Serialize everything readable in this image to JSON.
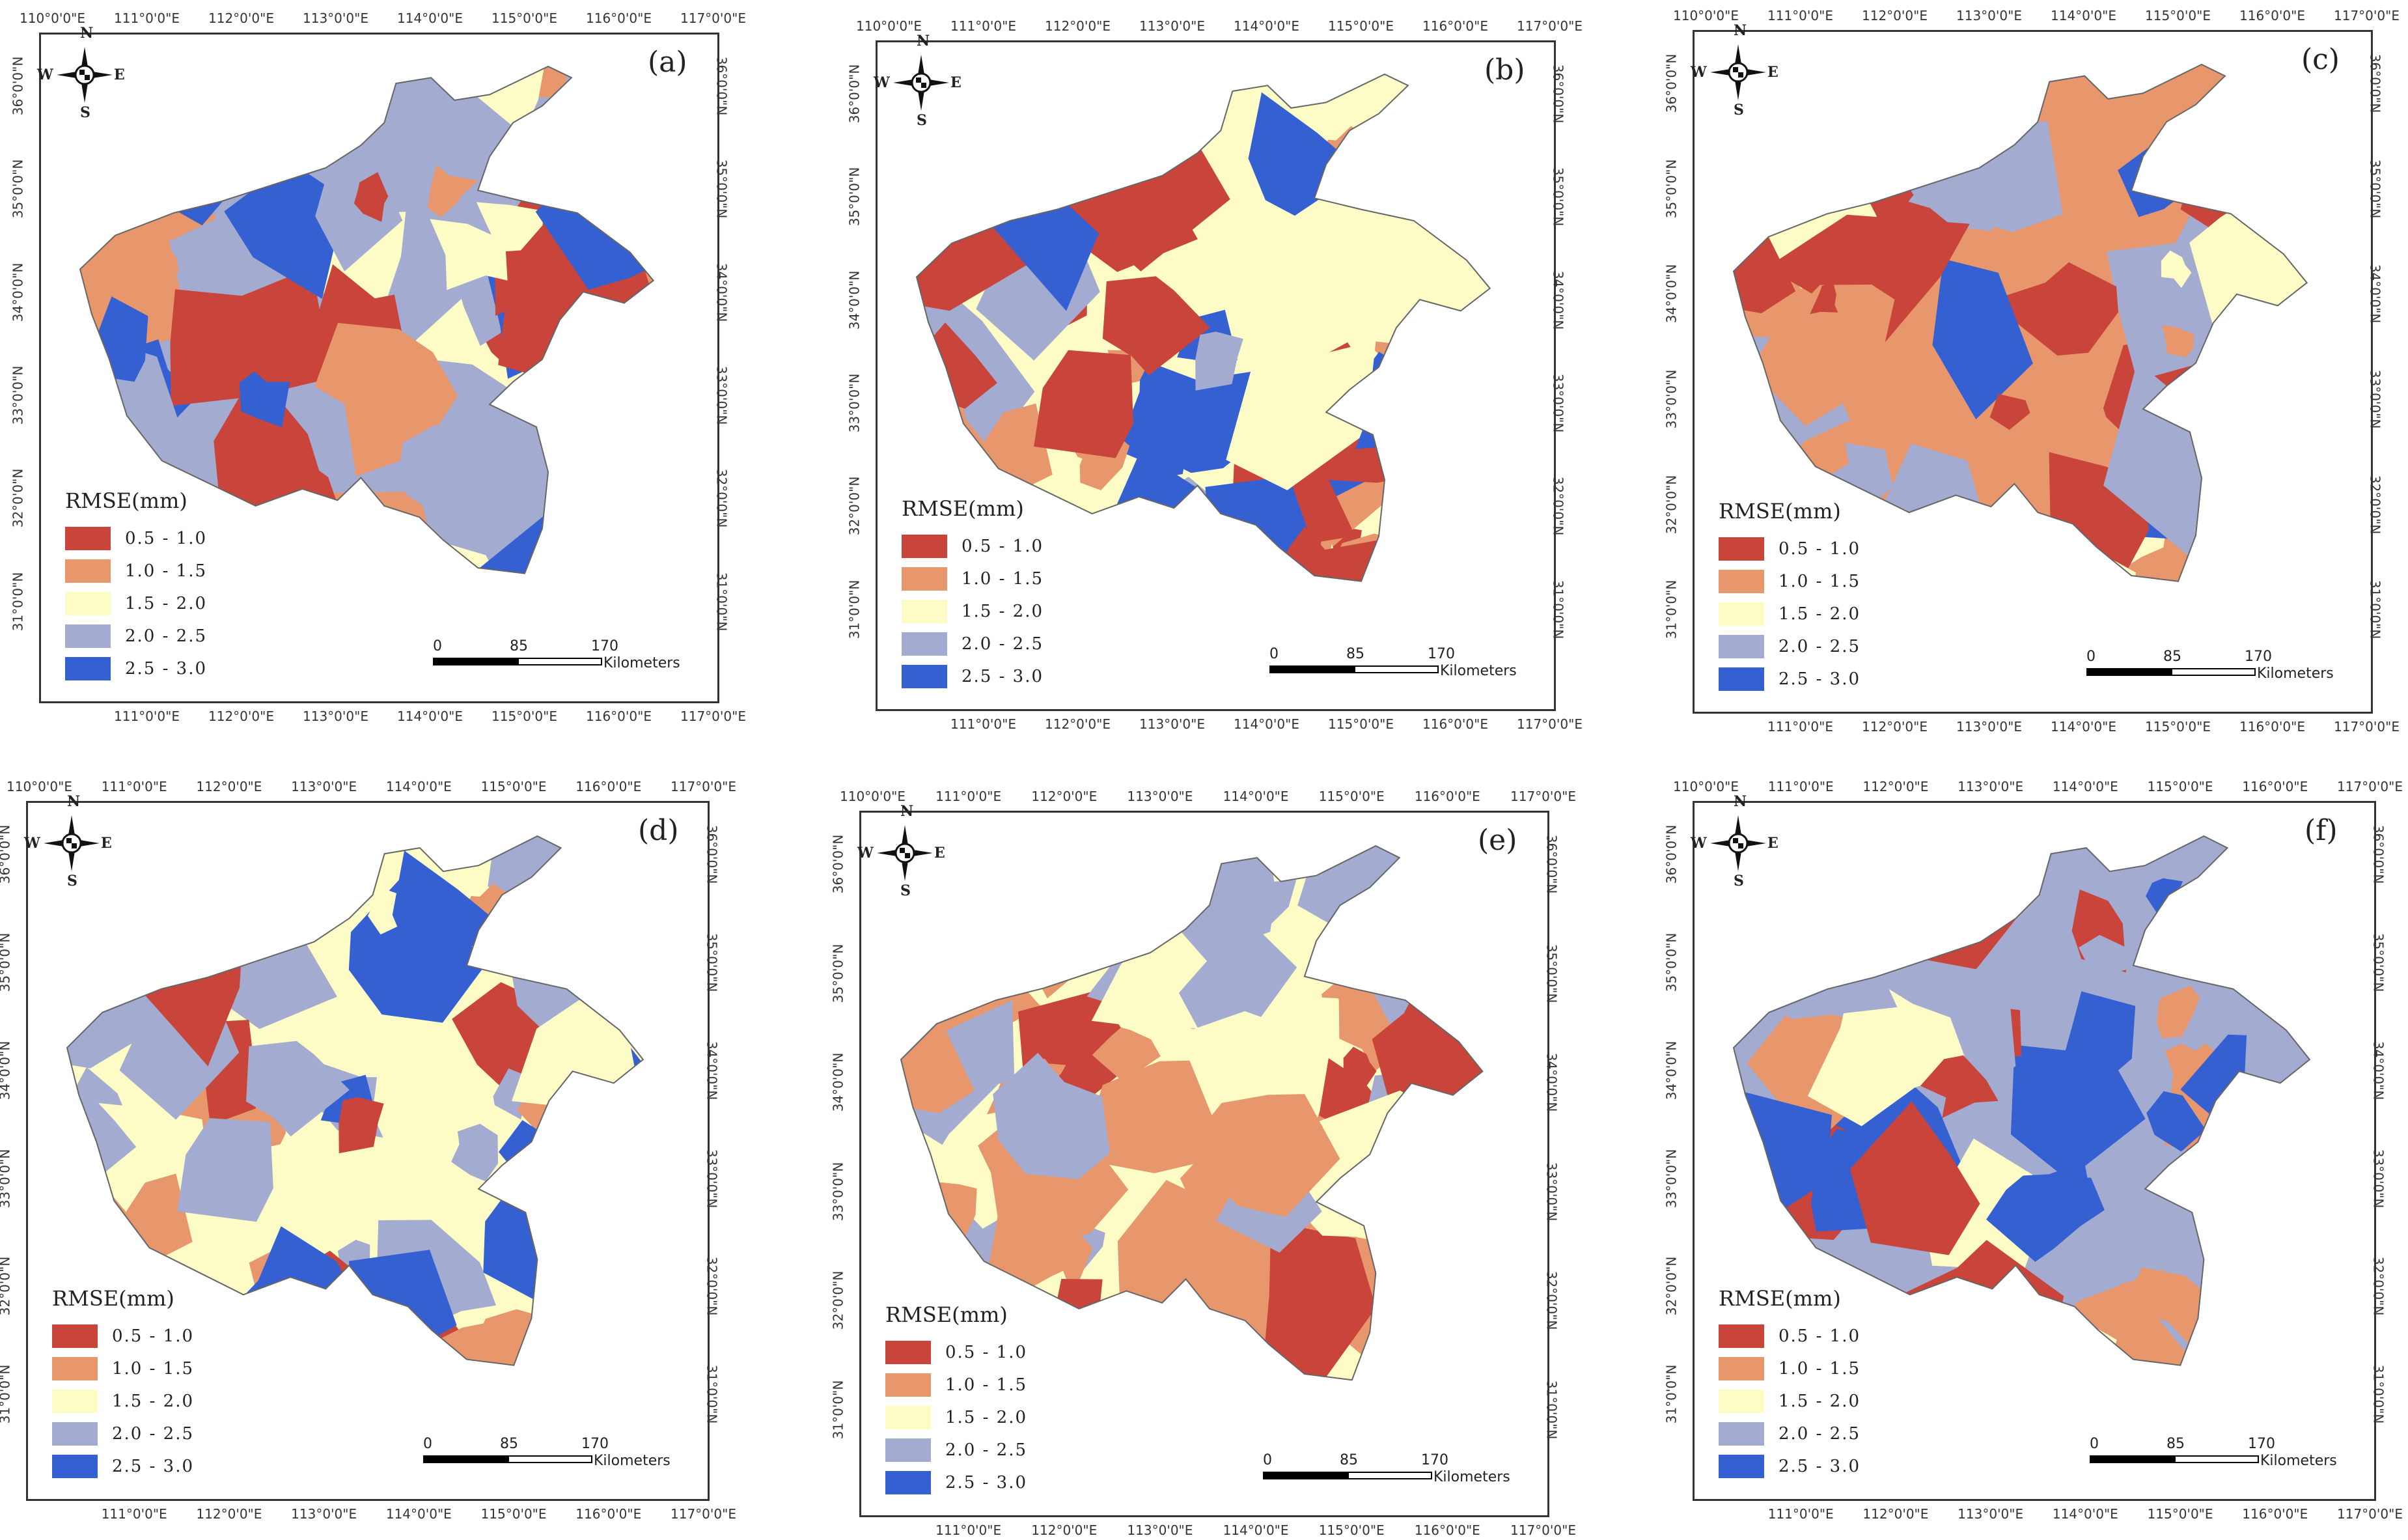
{
  "figure": {
    "lon_labels": [
      "110°0'0\"E",
      "111°0'0\"E",
      "112°0'0\"E",
      "113°0'0\"E",
      "114°0'0\"E",
      "115°0'0\"E",
      "116°0'0\"E",
      "117°0'0\"E"
    ],
    "lat_labels": [
      "36°0'0\"N",
      "35°0'0\"N",
      "34°0'0\"N",
      "33°0'0\"N",
      "32°0'0\"N",
      "31°0'0\"N"
    ],
    "legend": {
      "title": "RMSE(mm)",
      "classes": [
        {
          "label": "0.5 - 1.0",
          "color": "#c9443a"
        },
        {
          "label": "1.0 - 1.5",
          "color": "#e8976d"
        },
        {
          "label": "1.5 - 2.0",
          "color": "#fdfcc6"
        },
        {
          "label": "2.0 - 2.5",
          "color": "#a3abd1"
        },
        {
          "label": "2.5 - 3.0",
          "color": "#3460d2"
        }
      ]
    },
    "scale": {
      "ticks": [
        "0",
        "85",
        "170"
      ],
      "unit": "Kilometers"
    },
    "compass": {
      "n": "N",
      "s": "S",
      "e": "E",
      "w": "W"
    },
    "panels": [
      {
        "id": "a",
        "label": "(a)",
        "dominant": [
          "#a3abd1",
          "#fdfcc6",
          "#3460d2",
          "#e8976d",
          "#c9443a"
        ]
      },
      {
        "id": "b",
        "label": "(b)",
        "dominant": [
          "#fdfcc6",
          "#e8976d",
          "#c9443a",
          "#a3abd1",
          "#3460d2"
        ]
      },
      {
        "id": "c",
        "label": "(c)",
        "dominant": [
          "#e8976d",
          "#c9443a",
          "#a3abd1",
          "#3460d2",
          "#fdfcc6"
        ]
      },
      {
        "id": "d",
        "label": "(d)",
        "dominant": [
          "#fdfcc6",
          "#e8976d",
          "#a3abd1",
          "#c9443a",
          "#3460d2"
        ]
      },
      {
        "id": "e",
        "label": "(e)",
        "dominant": [
          "#fdfcc6",
          "#e8976d",
          "#a3abd1",
          "#c9443a"
        ]
      },
      {
        "id": "f",
        "label": "(f)",
        "dominant": [
          "#a3abd1",
          "#3460d2",
          "#e8976d",
          "#fdfcc6",
          "#c9443a"
        ]
      }
    ]
  }
}
